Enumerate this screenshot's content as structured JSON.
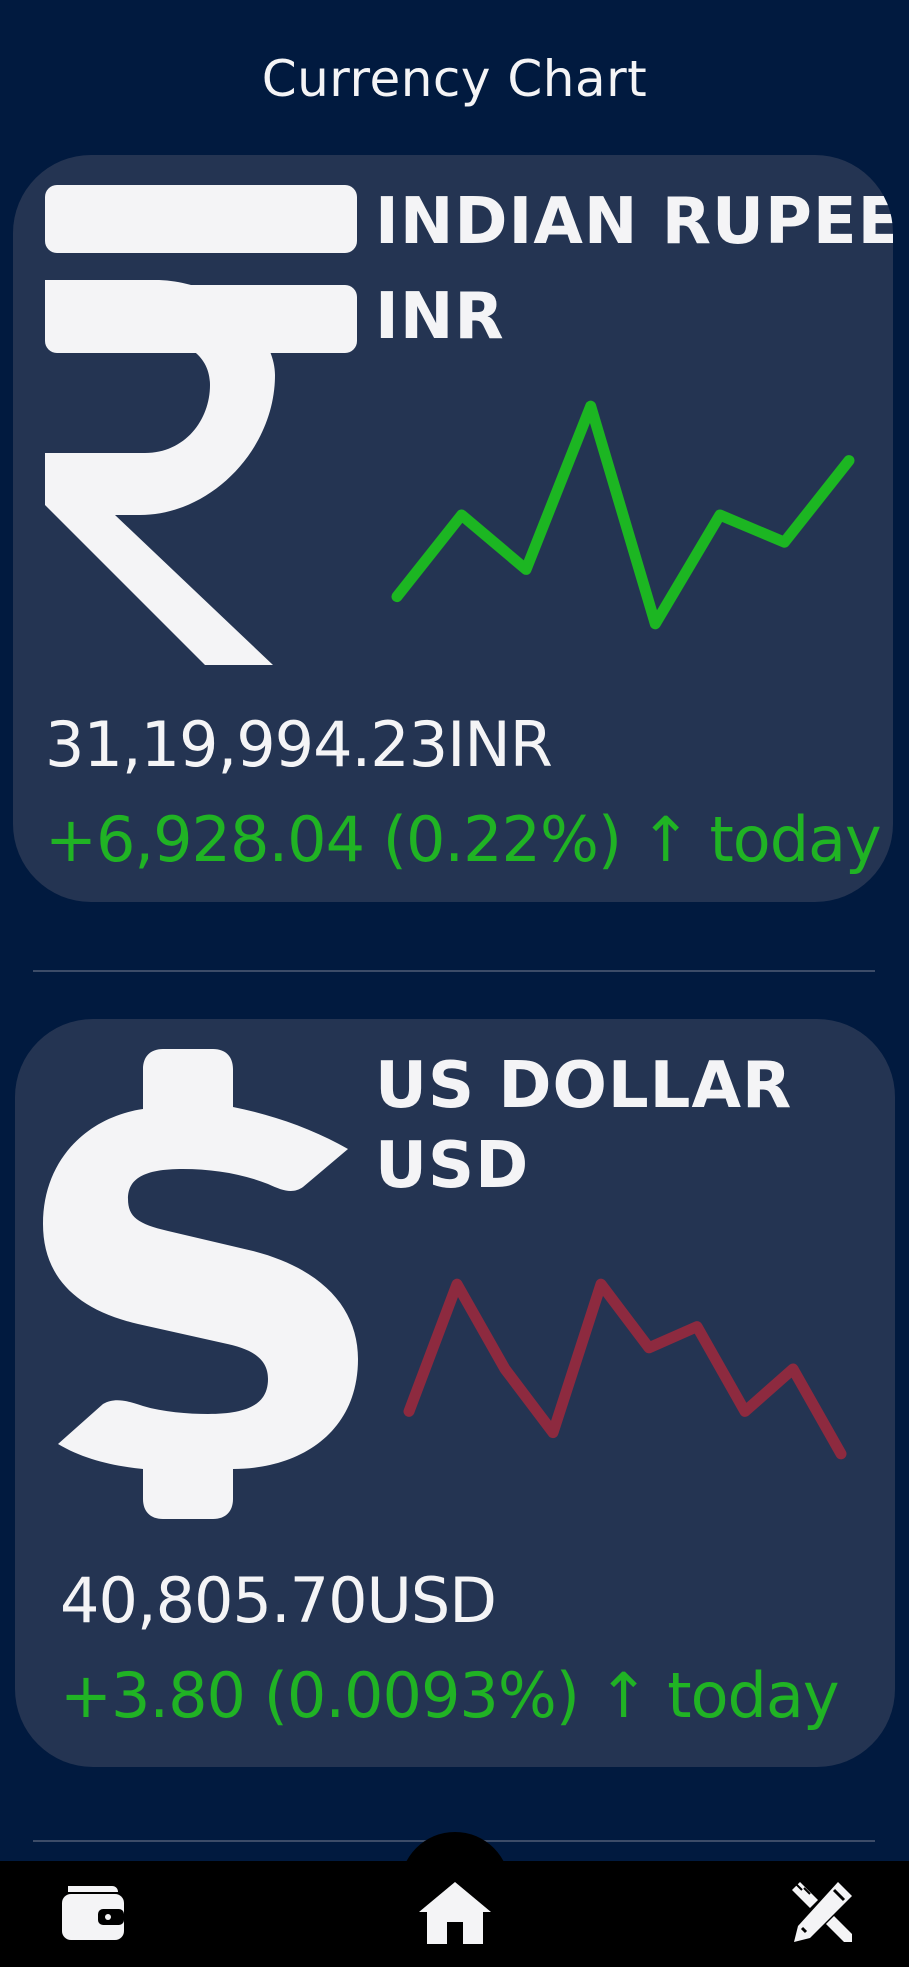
{
  "header": {
    "title": "Currency Chart"
  },
  "cards": [
    {
      "name": "INDIAN RUPEE",
      "code": "INR",
      "icon": "rupee-icon",
      "amount": "31,19,994.23INR",
      "change": "+6,928.04 (0.22%) ↑ today",
      "trend_color": "#1cb622",
      "chart_data": {
        "type": "line",
        "x": [
          0,
          1,
          2,
          3,
          4,
          5,
          6,
          7
        ],
        "values": [
          2,
          5,
          3,
          9,
          1,
          5,
          4,
          7
        ],
        "ylim": [
          0,
          10
        ]
      }
    },
    {
      "name": "US DOLLAR",
      "code": "USD",
      "icon": "dollar-icon",
      "amount": "40,805.70USD",
      "change": "+3.80 (0.0093%) ↑ today",
      "trend_color": "#8d2a3f",
      "chart_data": {
        "type": "line",
        "x": [
          0,
          1,
          2,
          3,
          4,
          5,
          6,
          7,
          8,
          9
        ],
        "values": [
          3,
          9,
          5,
          2,
          9,
          6,
          7,
          3,
          5,
          1
        ],
        "ylim": [
          0,
          10
        ]
      }
    }
  ],
  "nav": {
    "items": [
      {
        "icon": "wallet-icon"
      },
      {
        "icon": "home-icon"
      },
      {
        "icon": "edit-tools-icon"
      }
    ]
  },
  "colors": {
    "background": "#011a3f",
    "card": "#243452",
    "positive": "#20b324",
    "negative": "#8d2a3f",
    "text": "#f4f4f6"
  }
}
